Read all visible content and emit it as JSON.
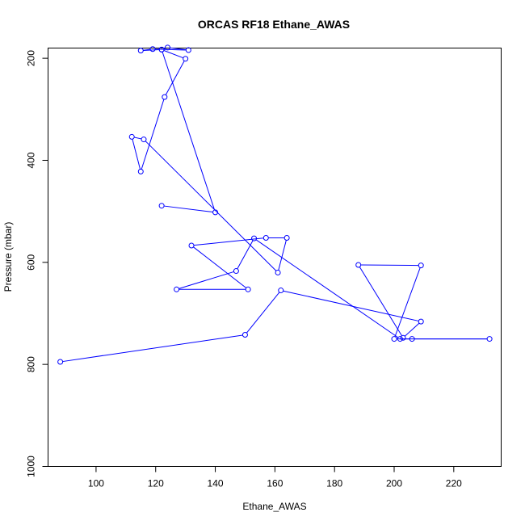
{
  "chart_data": {
    "type": "line",
    "title": "ORCAS RF18 Ethane_AWAS",
    "xlabel": "Ethane_AWAS",
    "ylabel": "Pressure (mbar)",
    "xlim": [
      83.9,
      235.9
    ],
    "ylim": [
      1000,
      180
    ],
    "y_reversed": true,
    "x_ticks": [
      100,
      120,
      140,
      160,
      180,
      200,
      220
    ],
    "y_ticks": [
      200,
      400,
      600,
      800,
      1000
    ],
    "grid": false,
    "marker": "open-circle",
    "line_color": "#0000ff",
    "series": [
      {
        "x": [
          88,
          150,
          162,
          209,
          203,
          188,
          209,
          200,
          206,
          232,
          202,
          153,
          147,
          127,
          151,
          132,
          157,
          164,
          161,
          116,
          112,
          115,
          123,
          130,
          122,
          115,
          119,
          131,
          124,
          122,
          140,
          122
        ],
        "y": [
          795,
          742,
          655,
          716,
          748,
          605,
          606,
          750,
          750,
          750,
          750,
          553,
          617,
          653,
          653,
          567,
          552,
          552,
          620,
          359,
          354,
          422,
          276,
          201,
          183,
          185,
          182,
          184,
          179,
          183,
          502,
          489
        ]
      }
    ]
  }
}
